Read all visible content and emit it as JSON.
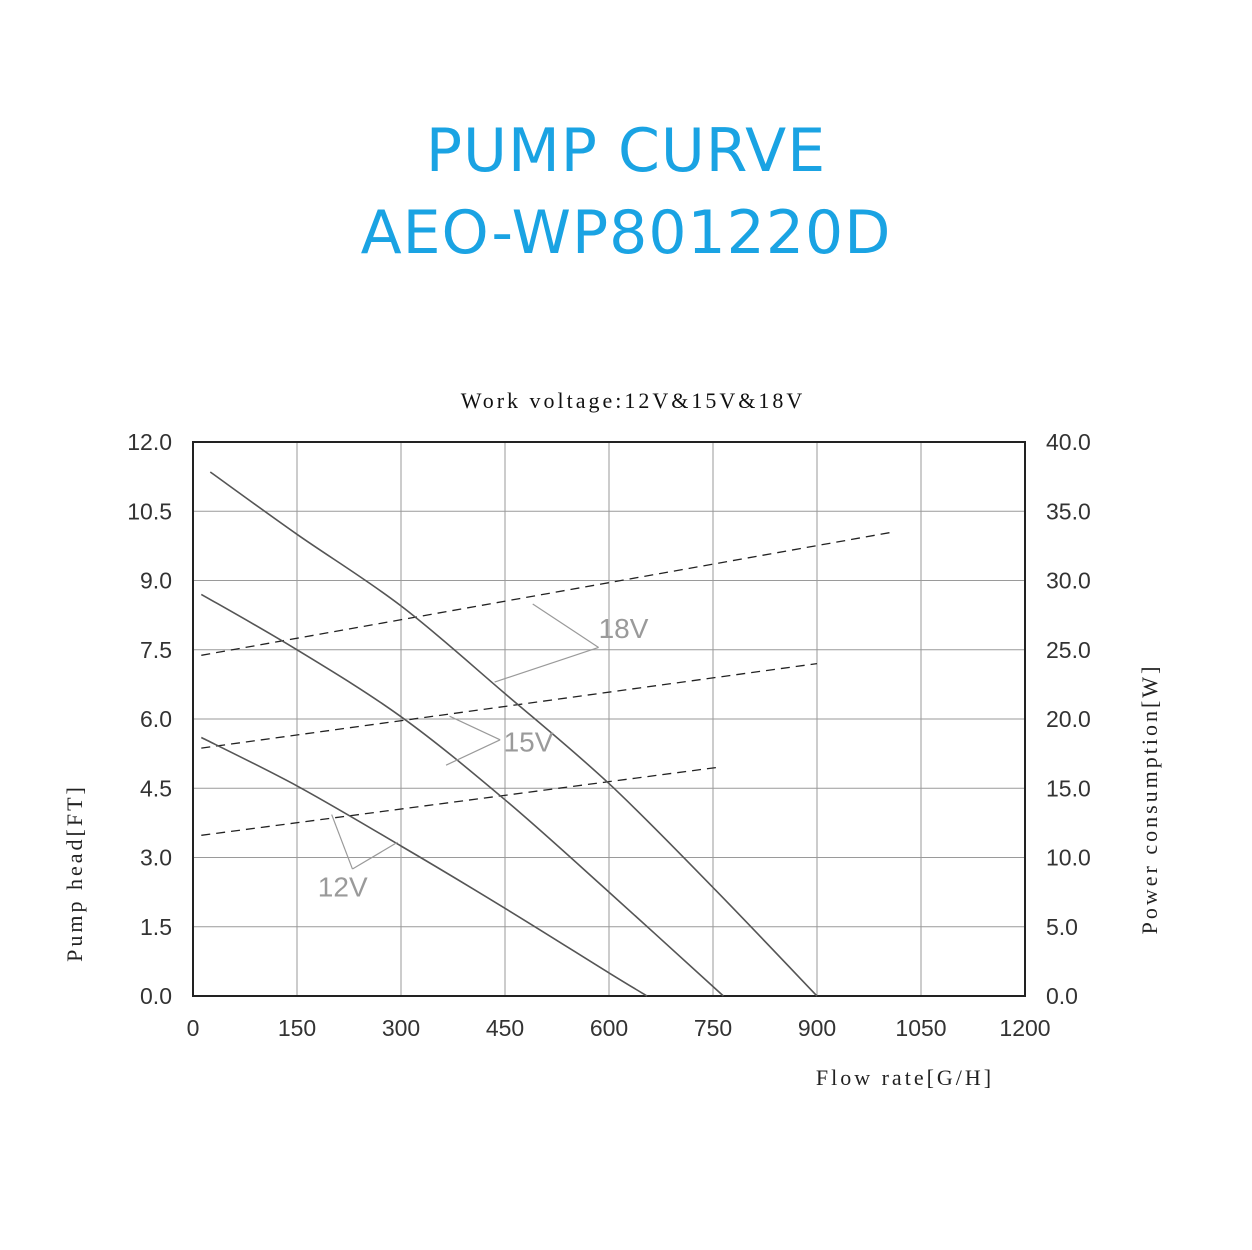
{
  "title": {
    "line1": "PUMP CURVE",
    "line2": "AEO-WP801220D"
  },
  "colors": {
    "title": "#1aa3e3",
    "grid": "#9a9a9a",
    "frame": "#222222",
    "head_curve": "#555555",
    "power_curve": "#222222",
    "label": "#9a9a9a"
  },
  "chart_data": {
    "type": "line",
    "title": "Work voltage:12V&15V&18V",
    "xlabel": "Flow rate[G/H]",
    "ylabel": "Pump head[FT]",
    "y2label": "Power consumption[W]",
    "xlim": [
      0,
      1200
    ],
    "ylim": [
      0,
      12
    ],
    "y2lim": [
      0,
      40
    ],
    "grid": true,
    "x_ticks": [
      "0",
      "150",
      "300",
      "450",
      "600",
      "750",
      "900",
      "1050",
      "1200"
    ],
    "y_ticks": [
      "0.0",
      "1.5",
      "3.0",
      "4.5",
      "6.0",
      "7.5",
      "9.0",
      "10.5",
      "12.0"
    ],
    "y2_ticks": [
      "0.0",
      "5.0",
      "10.0",
      "15.0",
      "20.0",
      "25.0",
      "30.0",
      "35.0",
      "40.0"
    ],
    "head_series": [
      {
        "name": "18V",
        "x": [
          25,
          150,
          300,
          450,
          600,
          750,
          900
        ],
        "y": [
          11.35,
          10.0,
          8.45,
          6.55,
          4.6,
          2.35,
          0.0
        ]
      },
      {
        "name": "15V",
        "x": [
          12,
          150,
          300,
          450,
          600,
          765
        ],
        "y": [
          8.7,
          7.5,
          6.05,
          4.25,
          2.25,
          0.0
        ]
      },
      {
        "name": "12V",
        "x": [
          12,
          150,
          300,
          450,
          600,
          655
        ],
        "y": [
          5.6,
          4.55,
          3.25,
          1.9,
          0.5,
          0.0
        ]
      }
    ],
    "power_series": [
      {
        "name": "18V",
        "x": [
          12,
          1010
        ],
        "y": [
          24.6,
          33.5
        ]
      },
      {
        "name": "15V",
        "x": [
          12,
          900
        ],
        "y": [
          17.9,
          24.0
        ]
      },
      {
        "name": "12V",
        "x": [
          12,
          755
        ],
        "y": [
          11.6,
          16.5
        ]
      }
    ],
    "annotations": [
      {
        "label": "18V",
        "text_x": 585,
        "text_y": 7.75,
        "anchor_x": 585,
        "anchor_y": 7.55,
        "targets": [
          {
            "x": 490,
            "y2": 28.3
          },
          {
            "x": 435,
            "y": 6.8
          }
        ]
      },
      {
        "label": "15V",
        "text_x": 448,
        "text_y": 5.3,
        "anchor_x": 443,
        "anchor_y": 5.55,
        "targets": [
          {
            "x": 370,
            "y2": 20.2
          },
          {
            "x": 365,
            "y": 5.0
          }
        ]
      },
      {
        "label": "12V",
        "text_x": 180,
        "text_y": 2.15,
        "anchor_x": 230,
        "anchor_y": 2.75,
        "targets": [
          {
            "x": 200,
            "y2": 13.1
          },
          {
            "x": 295,
            "y2": 11.1
          }
        ]
      }
    ]
  }
}
